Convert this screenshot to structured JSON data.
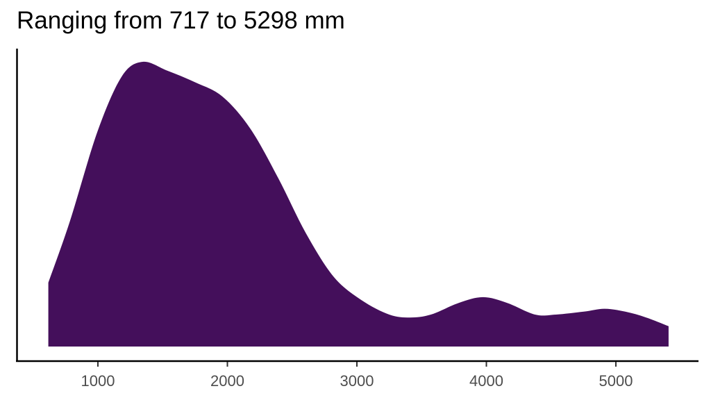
{
  "chart_data": {
    "type": "area",
    "subtype": "density",
    "title": "Ranging from 717 to 5298 mm",
    "xlabel": "",
    "ylabel": "",
    "x_ticks": [
      1000,
      2000,
      3000,
      4000,
      5000
    ],
    "x_tick_labels": [
      "1000",
      "2000",
      "3000",
      "4000",
      "5000"
    ],
    "xlim": [
      400,
      5650
    ],
    "grid": false,
    "legend": null,
    "fill_color": "#440F5B",
    "series": [
      {
        "name": "density",
        "x": [
          617,
          783,
          997,
          1185,
          1346,
          1534,
          1748,
          1963,
          2177,
          2392,
          2606,
          2821,
          3035,
          3250,
          3410,
          3571,
          3786,
          3974,
          4161,
          4376,
          4537,
          4751,
          4912,
          5073,
          5234,
          5407
        ],
        "y_relative": [
          0.22,
          0.43,
          0.74,
          0.93,
          0.98,
          0.95,
          0.91,
          0.86,
          0.75,
          0.58,
          0.39,
          0.24,
          0.16,
          0.11,
          0.1,
          0.11,
          0.15,
          0.17,
          0.15,
          0.11,
          0.11,
          0.12,
          0.13,
          0.12,
          0.1,
          0.07
        ]
      }
    ],
    "range_min_mm": 717,
    "range_max_mm": 5298
  }
}
